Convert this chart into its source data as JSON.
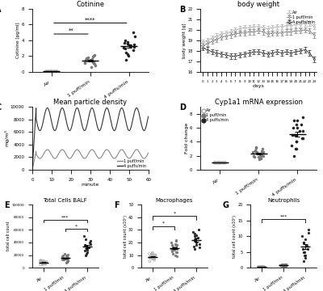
{
  "panel_A": {
    "title": "Cotinine",
    "ylabel": "Cotinine [pg/ml]",
    "groups": [
      "Air",
      "1 puff/min",
      "4 puffs/min"
    ],
    "air_data": [
      0.05,
      0.05,
      0.05,
      0.05,
      0.05,
      0.05,
      0.05,
      0.05,
      0.05,
      0.05,
      0.05,
      0.05,
      0.05,
      0.05,
      0.05,
      0.05,
      0.05,
      0.05,
      0.05,
      0.05
    ],
    "puff1_data": [
      0.6,
      0.8,
      1.0,
      1.1,
      1.2,
      1.3,
      1.4,
      1.5,
      1.6,
      1.7,
      1.8,
      1.9,
      2.0,
      2.1,
      1.3,
      1.1,
      1.5,
      1.2,
      1.4,
      1.6
    ],
    "puff4_data": [
      1.5,
      2.0,
      2.2,
      2.5,
      2.8,
      3.0,
      3.1,
      3.2,
      3.3,
      3.4,
      3.5,
      3.6,
      3.7,
      3.8,
      4.0,
      4.5,
      5.0
    ],
    "ylim": [
      0,
      8
    ]
  },
  "panel_B": {
    "title": "body weight",
    "xlabel": "days",
    "ylabel": "body weight [g]",
    "days": [
      0,
      1,
      2,
      3,
      4,
      5,
      6,
      7,
      8,
      9,
      10,
      11,
      12,
      13,
      14,
      15,
      16,
      17,
      18,
      19,
      20,
      21,
      22,
      23,
      24
    ],
    "air_mean": [
      18.8,
      19.0,
      19.2,
      19.4,
      19.6,
      19.7,
      19.8,
      20.0,
      20.1,
      20.2,
      20.2,
      20.3,
      20.3,
      20.2,
      20.1,
      20.2,
      20.3,
      20.3,
      20.4,
      20.4,
      20.5,
      20.5,
      20.6,
      20.6,
      20.3
    ],
    "puff1_mean": [
      18.5,
      18.7,
      18.9,
      19.1,
      19.3,
      19.4,
      19.5,
      19.6,
      19.7,
      19.7,
      19.8,
      19.8,
      19.9,
      19.8,
      19.6,
      19.7,
      19.7,
      19.7,
      19.8,
      19.8,
      19.9,
      19.9,
      20.0,
      19.9,
      19.5
    ],
    "puff4_mean": [
      18.3,
      18.1,
      17.9,
      17.8,
      17.7,
      17.6,
      17.5,
      17.5,
      17.6,
      17.7,
      17.8,
      17.9,
      17.9,
      17.8,
      17.7,
      17.8,
      17.9,
      17.8,
      17.9,
      17.8,
      17.9,
      18.0,
      18.1,
      17.8,
      17.2
    ],
    "air_sem": [
      0.25,
      0.25,
      0.25,
      0.25,
      0.25,
      0.25,
      0.25,
      0.25,
      0.25,
      0.25,
      0.25,
      0.25,
      0.25,
      0.25,
      0.25,
      0.25,
      0.25,
      0.25,
      0.25,
      0.25,
      0.25,
      0.25,
      0.25,
      0.25,
      0.25
    ],
    "puff1_sem": [
      0.25,
      0.25,
      0.25,
      0.25,
      0.25,
      0.25,
      0.25,
      0.25,
      0.25,
      0.25,
      0.25,
      0.25,
      0.25,
      0.25,
      0.25,
      0.25,
      0.25,
      0.25,
      0.25,
      0.25,
      0.25,
      0.25,
      0.25,
      0.25,
      0.25
    ],
    "puff4_sem": [
      0.25,
      0.25,
      0.25,
      0.25,
      0.25,
      0.25,
      0.25,
      0.25,
      0.25,
      0.25,
      0.25,
      0.25,
      0.25,
      0.25,
      0.25,
      0.25,
      0.25,
      0.25,
      0.25,
      0.25,
      0.25,
      0.25,
      0.25,
      0.25,
      0.25
    ],
    "ylim": [
      16,
      22
    ],
    "yticks": [
      16,
      17,
      18,
      19,
      20,
      21,
      22
    ]
  },
  "panel_C": {
    "title": "Mean particle density",
    "xlabel": "minute",
    "ylabel": "mg/m³",
    "ylim": [
      0,
      10000
    ],
    "yticks": [
      0,
      2000,
      4000,
      6000,
      8000,
      10000
    ]
  },
  "panel_D": {
    "title": "Cyp1a1 mRNA expression",
    "ylabel": "Fold change",
    "groups": [
      "Air",
      "1 puff/min",
      "4 puffs/min"
    ],
    "air_data": [
      1.0,
      1.0,
      1.0,
      1.0,
      1.0,
      1.0,
      1.0,
      1.0,
      1.0,
      1.0,
      1.0,
      1.0,
      1.0,
      1.0,
      1.0,
      1.0,
      1.0,
      1.0,
      1.0,
      1.0
    ],
    "puff1_data": [
      1.5,
      2.0,
      2.5,
      3.0,
      2.5,
      2.0,
      2.5,
      1.8,
      2.2,
      2.8,
      3.2,
      1.6,
      2.1,
      2.4,
      2.7,
      2.0,
      1.9,
      2.3,
      2.6,
      3.1
    ],
    "puff4_data": [
      2.0,
      3.0,
      4.0,
      5.0,
      6.5,
      7.0,
      3.5,
      4.5,
      5.5,
      6.0,
      7.5,
      4.0,
      5.0,
      3.0,
      6.0,
      5.5,
      4.5,
      7.0,
      6.5,
      5.0
    ],
    "ylim": [
      0,
      9
    ]
  },
  "panel_E": {
    "title": "Total Cells BALF",
    "ylabel": "total cell count",
    "groups": [
      "Air",
      "1 puff/min",
      "4 puffs/min"
    ],
    "air_data": [
      5000,
      6000,
      7000,
      8000,
      9000,
      10000,
      11000,
      12000,
      8000,
      7000,
      9000,
      6000,
      5000,
      10000,
      11000,
      7500,
      8500,
      6500,
      9500,
      10500
    ],
    "puff1_data": [
      8000,
      10000,
      12000,
      15000,
      18000,
      20000,
      22000,
      14000,
      16000,
      19000,
      13000,
      11000,
      17000,
      21000,
      9000,
      12500,
      15500,
      18500,
      16000,
      13500
    ],
    "puff4_data": [
      20000,
      25000,
      30000,
      35000,
      40000,
      45000,
      50000,
      38000,
      32000,
      28000,
      42000,
      33000,
      27000,
      22000,
      36000
    ],
    "ylim": [
      0,
      100000
    ]
  },
  "panel_F": {
    "title": "Macrophages",
    "ylabel": "total cell count (x10³)",
    "groups": [
      "Air",
      "1 puff/min",
      "4 puffs/min"
    ],
    "air_data": [
      5,
      7,
      8,
      9,
      10,
      11,
      12,
      8,
      9,
      10,
      7,
      6,
      11,
      8,
      9,
      10,
      8,
      7,
      9,
      11
    ],
    "puff1_data": [
      10,
      12,
      15,
      18,
      20,
      22,
      16,
      14,
      19,
      13,
      11,
      17,
      21,
      9,
      12,
      15,
      18,
      16,
      14,
      17
    ],
    "puff4_data": [
      15,
      18,
      20,
      25,
      30,
      22,
      28,
      16,
      24,
      26,
      19,
      23,
      17,
      21,
      27
    ],
    "ylim": [
      0,
      50
    ]
  },
  "panel_G": {
    "title": "Neutrophils",
    "ylabel": "total cell count (x10³)",
    "groups": [
      "Air",
      "1 puff/min",
      "4 puffs/min"
    ],
    "air_data": [
      0.1,
      0.2,
      0.3,
      0.2,
      0.1,
      0.3,
      0.2,
      0.4,
      0.1,
      0.2,
      0.3,
      0.4,
      0.2,
      0.1,
      0.3,
      0.2,
      0.1,
      0.3,
      0.2,
      0.1
    ],
    "puff1_data": [
      0.5,
      0.8,
      1.0,
      1.2,
      0.7,
      0.9,
      1.1,
      0.6,
      0.8,
      1.0,
      0.7,
      0.9,
      1.2,
      0.6,
      0.8,
      0.7,
      0.9,
      1.0,
      0.8,
      0.6
    ],
    "puff4_data": [
      2,
      3,
      4,
      5,
      6,
      8,
      10,
      12,
      7,
      9,
      11,
      4,
      6,
      5,
      8
    ],
    "ylim": [
      0,
      20
    ],
    "yticks": [
      0,
      5,
      10,
      15,
      20
    ]
  },
  "colors": {
    "air": "#aaaaaa",
    "puff1": "#777777",
    "puff4": "#222222"
  }
}
